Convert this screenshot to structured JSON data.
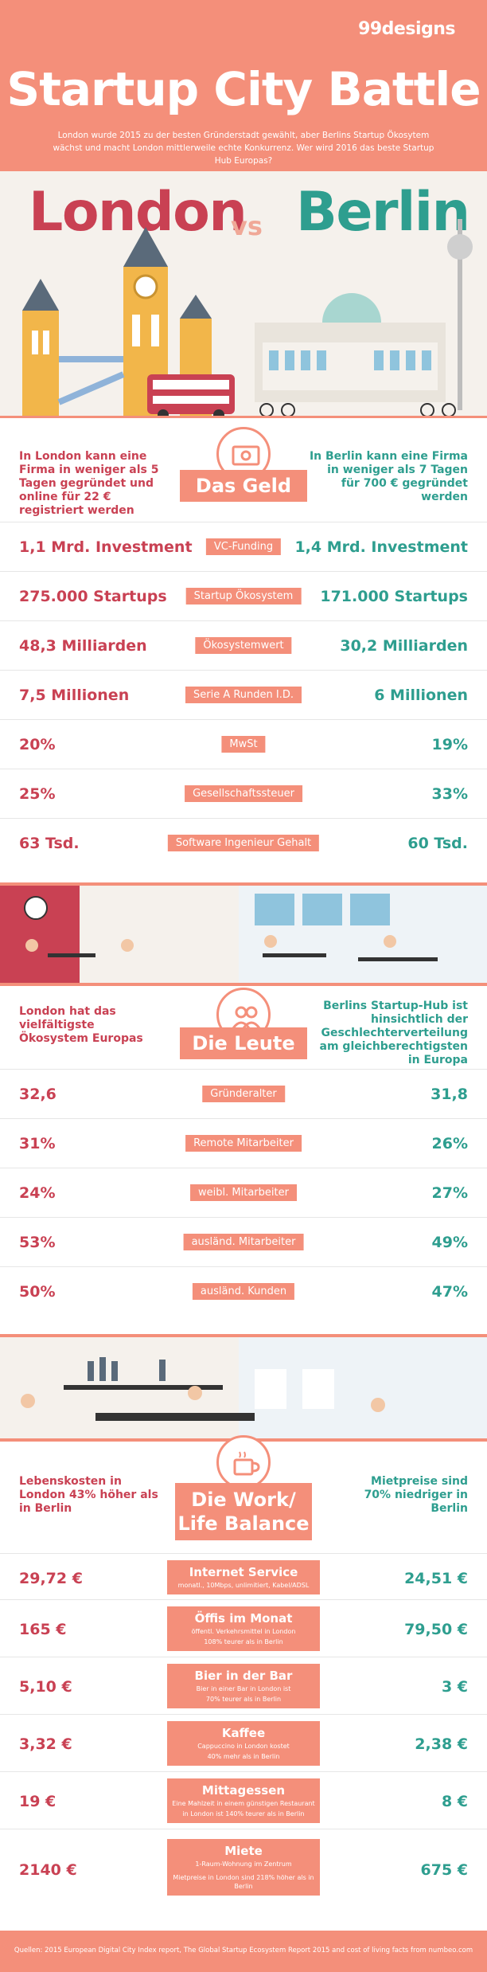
{
  "header": {
    "logo": "99designs",
    "title": "Startup City Battle",
    "intro": "London wurde 2015 zu der besten Gründerstadt gewählt, aber Berlins Startup Ökosytem wächst und macht London mittlerweile echte Konkurrenz. Wer wird 2016 das beste Startup Hub Europas?"
  },
  "cities": {
    "left": "London",
    "vs": "vs",
    "right": "Berlin"
  },
  "money": {
    "title": "Das Geld",
    "icon": "money-stack-icon",
    "intro_left": "In London kann eine Firma in weniger als 5 Tagen gegründet und online für 22 € registriert werden",
    "intro_right": "In Berlin kann eine Firma in weniger als 7 Tagen für 700 € gegründet werden",
    "rows": [
      {
        "left": "1,1 Mrd. Investment",
        "label": "VC-Funding",
        "right": "1,4 Mrd. Investment"
      },
      {
        "left": "275.000 Startups",
        "label": "Startup Ökosystem",
        "right": "171.000 Startups"
      },
      {
        "left": "48,3 Milliarden",
        "label": "Ökosystemwert",
        "right": "30,2 Milliarden"
      },
      {
        "left": "7,5 Millionen",
        "label": "Serie A Runden I.D.",
        "right": "6 Millionen"
      },
      {
        "left": "20%",
        "label": "MwSt",
        "right": "19%"
      },
      {
        "left": "25%",
        "label": "Gesellschaftssteuer",
        "right": "33%"
      },
      {
        "left": "63 Tsd.",
        "label": "Software Ingenieur Gehalt",
        "right": "60 Tsd."
      }
    ]
  },
  "people": {
    "title": "Die Leute",
    "icon": "people-icon",
    "intro_left": "London hat das vielfältigste Ökosystem Europas",
    "intro_right": "Berlins Startup-Hub ist hinsichtlich der Geschlechterverteilung am gleichberechtigsten in Europa",
    "rows": [
      {
        "left": "32,6",
        "label": "Gründeralter",
        "right": "31,8"
      },
      {
        "left": "31%",
        "label": "Remote Mitarbeiter",
        "right": "26%"
      },
      {
        "left": "24%",
        "label": "weibl. Mitarbeiter",
        "right": "27%"
      },
      {
        "left": "53%",
        "label": "ausländ. Mitarbeiter",
        "right": "49%"
      },
      {
        "left": "50%",
        "label": "ausländ. Kunden",
        "right": "47%"
      }
    ]
  },
  "worklife": {
    "title_line1": "Die Work/",
    "title_line2": "Life Balance",
    "icon": "coffee-cup-icon",
    "intro_left": "Lebenskosten in London 43% höher als in Berlin",
    "intro_right": "Mietpreise sind 70% niedriger in Berlin",
    "rows": [
      {
        "left": "29,72 €",
        "title": "Internet Service",
        "sub1": "monatl., 10Mbps, unlimitiert, Kabel/ADSL",
        "sub2": "",
        "right": "24,51 €"
      },
      {
        "left": "165 €",
        "title": "Öffis im Monat",
        "sub1": "öffentl. Verkehrsmittel in London",
        "sub2": "108% teurer als in Berlin",
        "right": "79,50 €"
      },
      {
        "left": "5,10 €",
        "title": "Bier in der Bar",
        "sub1": "Bier in einer Bar in London ist",
        "sub2": "70% teurer als in Berlin",
        "right": "3 €"
      },
      {
        "left": "3,32 €",
        "title": "Kaffee",
        "sub1": "Cappuccino in London kostet",
        "sub2": "40% mehr als in Berlin",
        "right": "2,38 €"
      },
      {
        "left": "19 €",
        "title": "Mittagessen",
        "sub1": "Eine Mahlzeit in einem günstigen Restaurant",
        "sub2": "in London ist 140% teurer als in Berlin",
        "right": "8 €"
      },
      {
        "left": "2140 €",
        "title": "Miete",
        "sub1": "1-Raum-Wohnung im Zentrum",
        "sub2": "Mietpreise in London sind 218% höher als in Berlin",
        "right": "675 €"
      }
    ]
  },
  "footer": "Quellen: 2015 European Digital City Index report, The Global Startup Ecosystem Report 2015 and cost of living facts from numbeo.com",
  "colors": {
    "coral": "#f48f7a",
    "london_red": "#c94153",
    "berlin_green": "#2e9e8f"
  }
}
